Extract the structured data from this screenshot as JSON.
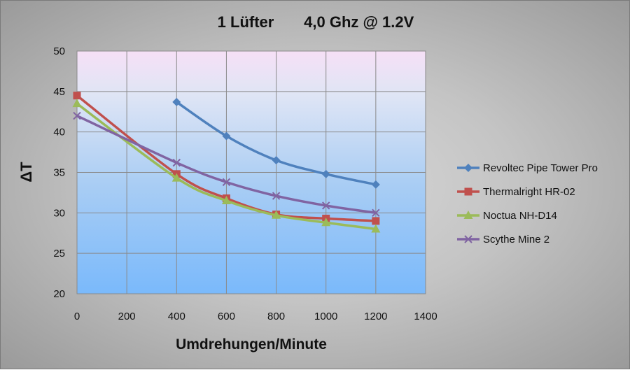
{
  "chart_data": {
    "type": "line",
    "title": "1 Lüfter       4,0 Ghz @ 1.2V",
    "xlabel": "Umdrehungen/Minute",
    "ylabel": "ΔT",
    "xlim": [
      0,
      1400
    ],
    "ylim": [
      20,
      50
    ],
    "xticks": [
      "0",
      "200",
      "400",
      "600",
      "800",
      "1000",
      "1200",
      "1400"
    ],
    "yticks": [
      "20",
      "25",
      "30",
      "35",
      "40",
      "45",
      "50"
    ],
    "grid": true,
    "legend_position": "right",
    "series": [
      {
        "name": "Revoltec Pipe Tower Pro",
        "color": "#4f81bd",
        "marker": "diamond",
        "x": [
          400,
          600,
          800,
          1000,
          1200
        ],
        "y": [
          43.7,
          39.5,
          36.5,
          34.8,
          33.5
        ]
      },
      {
        "name": "Thermalright HR-02",
        "color": "#c0504d",
        "marker": "square",
        "x": [
          0,
          400,
          600,
          800,
          1000,
          1200
        ],
        "y": [
          44.5,
          34.8,
          31.8,
          29.8,
          29.3,
          29.0
        ]
      },
      {
        "name": "Noctua NH-D14",
        "color": "#9bbb59",
        "marker": "triangle",
        "x": [
          0,
          400,
          600,
          800,
          1000,
          1200
        ],
        "y": [
          43.5,
          34.3,
          31.5,
          29.7,
          28.8,
          28.0
        ]
      },
      {
        "name": "Scythe Mine 2",
        "color": "#8064a2",
        "marker": "x",
        "x": [
          0,
          400,
          600,
          800,
          1000,
          1200
        ],
        "y": [
          42.0,
          36.2,
          33.8,
          32.1,
          30.9,
          30.0
        ]
      }
    ]
  }
}
